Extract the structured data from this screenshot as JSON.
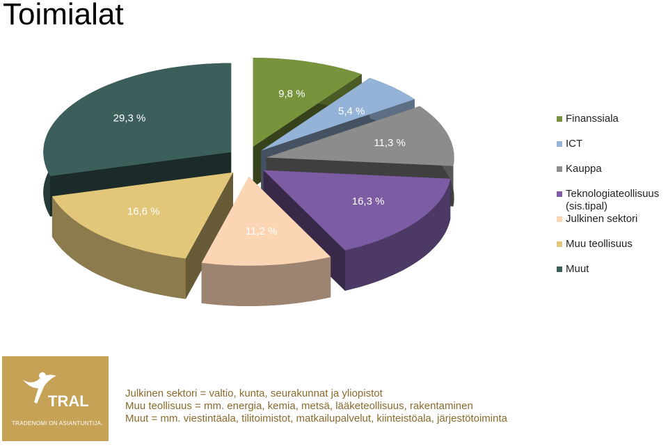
{
  "title": "Toimialat",
  "chart_data": {
    "type": "pie",
    "categories": [
      "Finanssiala",
      "ICT",
      "Kauppa",
      "Teknologiateollisuus (sis.tipal)",
      "Julkinen sektori",
      "Muu teollisuus",
      "Muut"
    ],
    "values": [
      9.8,
      5.4,
      11.3,
      16.3,
      11.2,
      16.6,
      29.3
    ],
    "value_labels": [
      "9,8 %",
      "5,4 %",
      "11,3 %",
      "16,3 %",
      "11,2 %",
      "16,6 %",
      "29,3 %"
    ],
    "colors": [
      "#77933c",
      "#95b3d7",
      "#8c8c8c",
      "#7c5ca3",
      "#fcd5b5",
      "#e2c77a",
      "#3d5f5c"
    ],
    "legend": "right"
  },
  "notes": [
    "Julkinen sektori = valtio, kunta, seurakunnat ja yliopistot",
    "Muu teollisuus = mm. energia, kemia, metsä, lääketeollisuus, rakentaminen",
    "Muut = mm. viestintäala, tilitoimistot, matkailupalvelut, kiinteistöala, järjestötoiminta"
  ],
  "logo": {
    "name": "TRAL",
    "tagline": "TRADENOMI ON ASIANTUNTIJA."
  }
}
